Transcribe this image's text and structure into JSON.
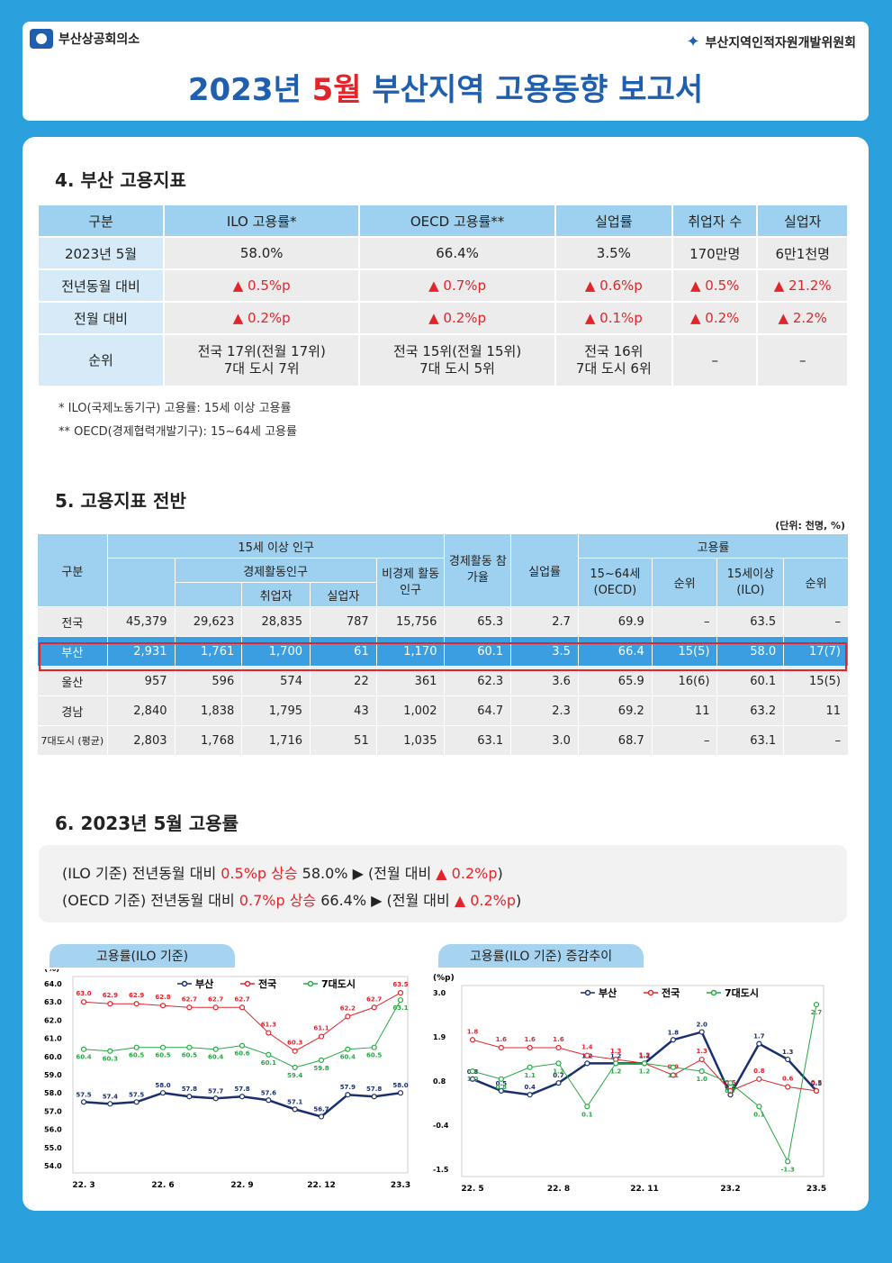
{
  "header": {
    "logo_left": "부산상공회의소",
    "logo_right": "부산지역인적자원개발위원회",
    "title_a": "2023년 ",
    "title_b": "5월",
    "title_c": " 부산지역 고용동향 보고서"
  },
  "sec4": {
    "title": "4. 부산 고용지표",
    "cols": [
      "구분",
      "ILO 고용률*",
      "OECD 고용률**",
      "실업률",
      "취업자 수",
      "실업자"
    ],
    "rows": [
      {
        "label": "2023년 5월",
        "cells": [
          "58.0%",
          "66.4%",
          "3.5%",
          "170만명",
          "6만1천명"
        ]
      },
      {
        "label": "전년동월 대비",
        "cells": [
          "▲ 0.5%p",
          "▲ 0.7%p",
          "▲ 0.6%p",
          "▲ 0.5%",
          "▲ 21.2%"
        ]
      },
      {
        "label": "전월 대비",
        "cells": [
          "▲ 0.2%p",
          "▲ 0.2%p",
          "▲ 0.1%p",
          "▲ 0.2%",
          "▲ 2.2%"
        ]
      }
    ],
    "rank": {
      "label": "순위",
      "cells": [
        [
          "전국 17위(전월 17위)",
          "7대 도시 7위"
        ],
        [
          "전국 15위(전월 15위)",
          "7대 도시 5위"
        ],
        [
          "전국 16위",
          "7대 도시 6위"
        ],
        [
          "–",
          ""
        ],
        [
          "–",
          ""
        ]
      ]
    },
    "notes": [
      "* ILO(국제노동기구) 고용률: 15세 이상 고용률",
      "** OECD(경제협력개발기구): 15~64세 고용률"
    ]
  },
  "sec5": {
    "title": "5. 고용지표 전반",
    "unit": "(단위: 천명, %)",
    "head": {
      "gubun": "구분",
      "pop": "15세 이상 인구",
      "econ": "경제활동인구",
      "emp": "취업자",
      "unemp": "실업자",
      "nonecon": "비경제 활동인구",
      "part": "경제활동 참가율",
      "unrate": "실업률",
      "emprate": "고용률",
      "oecd": "15~64세 (OECD)",
      "rank": "순위",
      "ilo": "15세이상 (ILO)",
      "rank2": "순위"
    },
    "rows": [
      {
        "name": "전국",
        "v": [
          "45,379",
          "29,623",
          "28,835",
          "787",
          "15,756",
          "65.3",
          "2.7",
          "69.9",
          "–",
          "63.5",
          "–"
        ]
      },
      {
        "name": "부산",
        "v": [
          "2,931",
          "1,761",
          "1,700",
          "61",
          "1,170",
          "60.1",
          "3.5",
          "66.4",
          "15(5)",
          "58.0",
          "17(7)"
        ]
      },
      {
        "name": "울산",
        "v": [
          "957",
          "596",
          "574",
          "22",
          "361",
          "62.3",
          "3.6",
          "65.9",
          "16(6)",
          "60.1",
          "15(5)"
        ]
      },
      {
        "name": "경남",
        "v": [
          "2,840",
          "1,838",
          "1,795",
          "43",
          "1,002",
          "64.7",
          "2.3",
          "69.2",
          "11",
          "63.2",
          "11"
        ]
      },
      {
        "name": "7대도시 (평균)",
        "v": [
          "2,803",
          "1,768",
          "1,716",
          "51",
          "1,035",
          "63.1",
          "3.0",
          "68.7",
          "–",
          "63.1",
          "–"
        ]
      }
    ]
  },
  "sec6": {
    "title": "6. 2023년 5월 고용률",
    "line1": {
      "a": "(ILO 기준) 전년동월 대비 ",
      "b": "0.5%p 상승",
      "c": " 58.0% ▶ (전월 대비 ",
      "d": "▲ 0.2%p",
      "e": ")"
    },
    "line2": {
      "a": "(OECD 기준) 전년동월 대비 ",
      "b": "0.7%p 상승",
      "c": " 66.4% ▶ (전월 대비 ",
      "d": "▲ 0.2%p",
      "e": ")"
    }
  },
  "chart_data": [
    {
      "type": "line",
      "title": "고용률(ILO 기준)",
      "ylabel": "(%)",
      "ylim": [
        54.0,
        64.0
      ],
      "yticks": [
        "64.0",
        "63.0",
        "62.0",
        "61.0",
        "60.0",
        "59.0",
        "58.0",
        "57.0",
        "56.0",
        "55.0",
        "54.0"
      ],
      "x_tick_labels": [
        "22. 3",
        "22. 6",
        "22. 9",
        "22. 12",
        "23.3"
      ],
      "series": [
        {
          "name": "부산",
          "color": "#1a2f6e",
          "values": [
            57.5,
            57.4,
            57.5,
            58.0,
            57.8,
            57.7,
            57.8,
            57.6,
            57.1,
            56.7,
            57.9,
            57.8,
            58.0
          ]
        },
        {
          "name": "전국",
          "color": "#e0252b",
          "values": [
            63.0,
            62.9,
            62.9,
            62.8,
            62.7,
            62.7,
            62.7,
            61.3,
            60.3,
            61.1,
            62.2,
            62.7,
            63.5
          ]
        },
        {
          "name": "7대도시",
          "color": "#27a844",
          "values": [
            60.4,
            60.3,
            60.5,
            60.5,
            60.5,
            60.4,
            60.6,
            60.1,
            59.4,
            59.8,
            60.4,
            60.5,
            63.1
          ]
        }
      ]
    },
    {
      "type": "line",
      "title": "고용률(ILO 기준) 증감추이",
      "ylabel": "(%p)",
      "ylim": [
        -1.5,
        3.0
      ],
      "yticks": [
        "3.0",
        "1.9",
        "0.8",
        "-0.4",
        "-1.5"
      ],
      "x_tick_labels": [
        "22. 5",
        "22. 8",
        "22. 11",
        "23.2",
        "23.5"
      ],
      "series": [
        {
          "name": "부산",
          "color": "#1a2f6e",
          "values": [
            0.8,
            0.5,
            0.4,
            0.7,
            1.2,
            1.2,
            1.2,
            1.8,
            2.0,
            0.4,
            1.7,
            1.3,
            0.5
          ]
        },
        {
          "name": "전국",
          "color": "#e0252b",
          "values": [
            1.8,
            1.6,
            1.6,
            1.6,
            1.4,
            1.3,
            1.2,
            0.9,
            1.3,
            0.5,
            0.8,
            0.6,
            0.5
          ]
        },
        {
          "name": "7대도시",
          "color": "#27a844",
          "values": [
            1.0,
            0.8,
            1.1,
            1.2,
            0.1,
            1.2,
            1.2,
            1.1,
            1.0,
            0.7,
            0.1,
            -1.3,
            2.7
          ]
        }
      ]
    }
  ]
}
